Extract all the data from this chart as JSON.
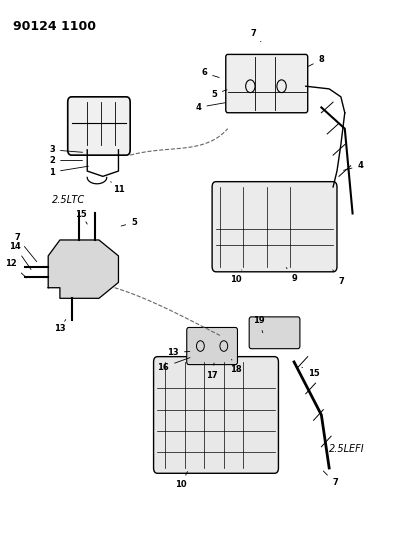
{
  "title": "90124 1100",
  "label_2_5ltc": "2.5LTC",
  "label_2_5lefi": "2.5LEFI",
  "background_color": "#ffffff",
  "line_color": "#000000",
  "text_color": "#000000",
  "fig_width": 3.93,
  "fig_height": 5.33,
  "dpi": 100
}
